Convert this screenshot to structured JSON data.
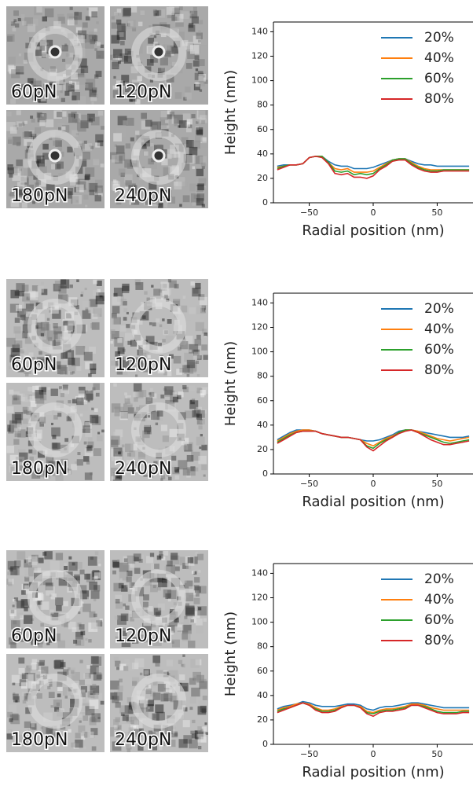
{
  "image_labels": [
    [
      "60pN",
      "120pN",
      "180pN",
      "240pN"
    ],
    [
      "60pN",
      "120pN",
      "180pN",
      "240pN"
    ],
    [
      "60pN",
      "120pN",
      "180pN",
      "240pN"
    ]
  ],
  "chart_data": [
    {
      "type": "line",
      "xlabel": "Radial position (nm)",
      "ylabel": "Height (nm)",
      "legend": "upper right",
      "x": [
        -75,
        -70,
        -65,
        -60,
        -55,
        -50,
        -45,
        -40,
        -35,
        -30,
        -25,
        -20,
        -15,
        -10,
        -5,
        0,
        5,
        10,
        15,
        20,
        25,
        30,
        35,
        40,
        45,
        50,
        55,
        60,
        65,
        70,
        75
      ],
      "xlim": [
        -78,
        78
      ],
      "ylim": [
        0,
        148
      ],
      "xticks": [
        {
          "value": -50,
          "label": "−50"
        },
        0,
        50
      ],
      "yticks": [
        0,
        20,
        40,
        60,
        80,
        100,
        120,
        140
      ],
      "series": [
        {
          "name": "20%",
          "color": "#1f77b4",
          "values": [
            30,
            31,
            31,
            31,
            32,
            37,
            38,
            38,
            34,
            31,
            30,
            30,
            28,
            28,
            28,
            29,
            31,
            33,
            35,
            36,
            36,
            34,
            32,
            31,
            31,
            30,
            30,
            30,
            30,
            30,
            30
          ]
        },
        {
          "name": "40%",
          "color": "#ff7f0e",
          "values": [
            29,
            30,
            31,
            31,
            32,
            37,
            38,
            38,
            33,
            28,
            27,
            28,
            25,
            25,
            25,
            26,
            29,
            32,
            35,
            36,
            36,
            33,
            30,
            28,
            27,
            27,
            27,
            27,
            27,
            27,
            27
          ]
        },
        {
          "name": "60%",
          "color": "#2ca02c",
          "values": [
            28,
            30,
            31,
            31,
            32,
            37,
            38,
            38,
            33,
            26,
            25,
            26,
            23,
            24,
            23,
            24,
            28,
            31,
            35,
            36,
            36,
            32,
            29,
            27,
            26,
            26,
            27,
            27,
            27,
            27,
            27
          ]
        },
        {
          "name": "80%",
          "color": "#d62728",
          "values": [
            27,
            29,
            31,
            31,
            32,
            37,
            38,
            37,
            32,
            24,
            23,
            24,
            21,
            21,
            20,
            22,
            27,
            30,
            34,
            35,
            35,
            31,
            28,
            26,
            25,
            25,
            26,
            26,
            26,
            26,
            26
          ]
        }
      ]
    },
    {
      "type": "line",
      "xlabel": "Radial position (nm)",
      "ylabel": "Height (nm)",
      "legend": "upper right",
      "x": [
        -75,
        -70,
        -65,
        -60,
        -55,
        -50,
        -45,
        -40,
        -35,
        -30,
        -25,
        -20,
        -15,
        -10,
        -5,
        0,
        5,
        10,
        15,
        20,
        25,
        30,
        35,
        40,
        45,
        50,
        55,
        60,
        65,
        70,
        75
      ],
      "xlim": [
        -78,
        78
      ],
      "ylim": [
        0,
        148
      ],
      "xticks": [
        {
          "value": -50,
          "label": "−50"
        },
        0,
        50
      ],
      "yticks": [
        0,
        20,
        40,
        60,
        80,
        100,
        120,
        140
      ],
      "series": [
        {
          "name": "20%",
          "color": "#1f77b4",
          "values": [
            28,
            31,
            34,
            36,
            36,
            36,
            35,
            33,
            32,
            31,
            30,
            30,
            29,
            28,
            27,
            27,
            28,
            30,
            32,
            35,
            36,
            36,
            35,
            34,
            33,
            32,
            31,
            30,
            30,
            30,
            31
          ]
        },
        {
          "name": "40%",
          "color": "#ff7f0e",
          "values": [
            27,
            30,
            33,
            35,
            36,
            36,
            35,
            33,
            32,
            31,
            30,
            30,
            29,
            28,
            25,
            23,
            26,
            29,
            31,
            34,
            36,
            36,
            35,
            33,
            31,
            29,
            28,
            27,
            28,
            29,
            30
          ]
        },
        {
          "name": "60%",
          "color": "#2ca02c",
          "values": [
            26,
            29,
            32,
            34,
            35,
            35,
            35,
            33,
            32,
            31,
            30,
            30,
            29,
            28,
            23,
            21,
            25,
            28,
            30,
            34,
            36,
            36,
            34,
            32,
            30,
            28,
            26,
            25,
            26,
            27,
            28
          ]
        },
        {
          "name": "80%",
          "color": "#d62728",
          "values": [
            25,
            28,
            31,
            34,
            35,
            35,
            35,
            33,
            32,
            31,
            30,
            30,
            29,
            28,
            22,
            19,
            23,
            27,
            30,
            33,
            35,
            36,
            34,
            31,
            28,
            26,
            24,
            24,
            25,
            26,
            27
          ]
        }
      ]
    },
    {
      "type": "line",
      "xlabel": "Radial position (nm)",
      "ylabel": "Height (nm)",
      "legend": "upper right",
      "x": [
        -75,
        -70,
        -65,
        -60,
        -55,
        -50,
        -45,
        -40,
        -35,
        -30,
        -25,
        -20,
        -15,
        -10,
        -5,
        0,
        5,
        10,
        15,
        20,
        25,
        30,
        35,
        40,
        45,
        50,
        55,
        60,
        65,
        70,
        75
      ],
      "xlim": [
        -78,
        78
      ],
      "ylim": [
        0,
        148
      ],
      "xticks": [
        {
          "value": -50,
          "label": "−50"
        },
        0,
        50
      ],
      "yticks": [
        0,
        20,
        40,
        60,
        80,
        100,
        120,
        140
      ],
      "series": [
        {
          "name": "20%",
          "color": "#1f77b4",
          "values": [
            29,
            31,
            32,
            33,
            35,
            34,
            32,
            31,
            31,
            31,
            32,
            33,
            33,
            32,
            29,
            28,
            30,
            31,
            31,
            32,
            33,
            34,
            34,
            33,
            32,
            31,
            30,
            30,
            30,
            30,
            30
          ]
        },
        {
          "name": "40%",
          "color": "#ff7f0e",
          "values": [
            28,
            30,
            31,
            33,
            34,
            33,
            30,
            28,
            28,
            29,
            31,
            32,
            32,
            31,
            27,
            26,
            28,
            29,
            29,
            30,
            31,
            33,
            33,
            32,
            30,
            29,
            28,
            28,
            28,
            28,
            28
          ]
        },
        {
          "name": "60%",
          "color": "#2ca02c",
          "values": [
            27,
            29,
            30,
            32,
            34,
            32,
            29,
            27,
            27,
            28,
            30,
            32,
            32,
            30,
            26,
            25,
            27,
            28,
            28,
            29,
            30,
            32,
            32,
            31,
            29,
            27,
            26,
            26,
            26,
            27,
            27
          ]
        },
        {
          "name": "80%",
          "color": "#d62728",
          "values": [
            26,
            28,
            30,
            32,
            34,
            32,
            28,
            26,
            26,
            27,
            30,
            32,
            32,
            30,
            25,
            23,
            26,
            27,
            27,
            28,
            29,
            32,
            32,
            30,
            28,
            26,
            25,
            25,
            25,
            26,
            26
          ]
        }
      ]
    }
  ]
}
